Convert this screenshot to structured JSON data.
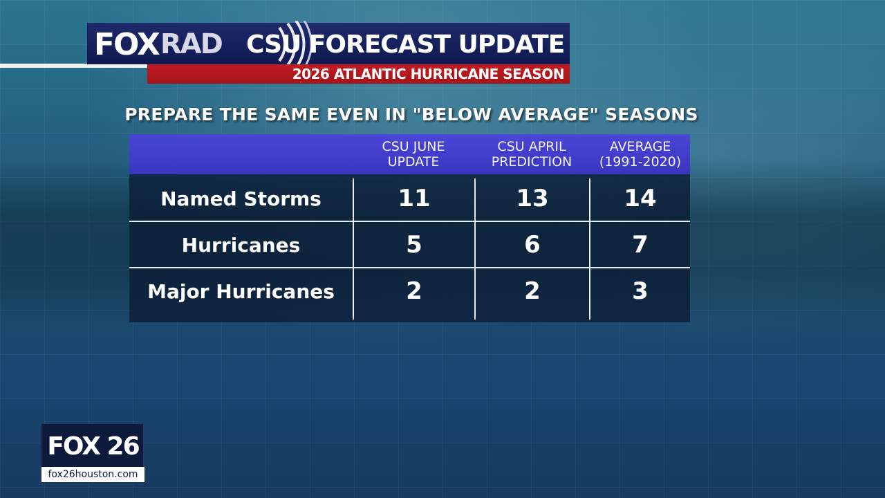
{
  "header": {
    "logo_fox": "FOX",
    "logo_rad": "RAD",
    "title": "CSU FORECAST UPDATE",
    "subtitle": "2026 ATLANTIC HURRICANE SEASON"
  },
  "headline": "PREPARE THE SAME EVEN IN \"BELOW AVERAGE\" SEASONS",
  "table": {
    "columns": [
      "",
      "CSU JUNE\nUPDATE",
      "CSU APRIL\nPREDICTION",
      "AVERAGE\n(1991-2020)"
    ],
    "rows": [
      {
        "label": "Named Storms",
        "values": [
          "11",
          "13",
          "14"
        ]
      },
      {
        "label": "Hurricanes",
        "values": [
          "5",
          "6",
          "7"
        ]
      },
      {
        "label": "Major Hurricanes",
        "values": [
          "2",
          "2",
          "3"
        ]
      }
    ]
  },
  "brand": {
    "logo": "FOX 26",
    "url": "fox26houston.com"
  },
  "colors": {
    "header_navy": "#1f2a6a",
    "header_red": "#c21c23",
    "table_header": "#4a46d6",
    "table_body": "#0a1c34"
  }
}
